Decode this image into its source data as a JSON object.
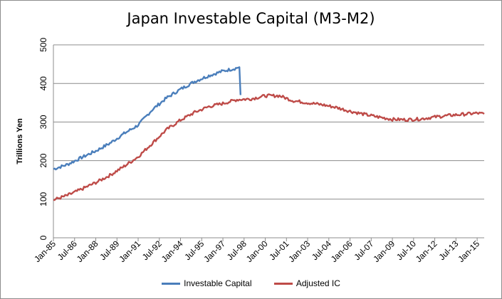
{
  "chart_data": {
    "type": "line",
    "title": "Japan Investable Capital (M3-M2)",
    "ylabel": "Trillions Yen",
    "xlabel": "",
    "ylim": [
      0,
      500
    ],
    "y_ticks": [
      0,
      100,
      200,
      300,
      400,
      500
    ],
    "x_ticks": [
      "Jan-85",
      "Jul-86",
      "Jan-88",
      "Jul-89",
      "Jan-91",
      "Jul-92",
      "Jan-94",
      "Jul-95",
      "Jan-97",
      "Jul-98",
      "Jan-00",
      "Jul-01",
      "Jan-03",
      "Jul-04",
      "Jan-06",
      "Jul-07",
      "Jan-09",
      "Jul-10",
      "Jan-12",
      "Jul-13",
      "Jan-15"
    ],
    "x_range": [
      "Jan-85",
      "Jul-15"
    ],
    "grid": "horizontal",
    "legend_position": "bottom",
    "series": [
      {
        "name": "Investable Capital",
        "color": "#4a7ebb",
        "points": [
          [
            "Jan-85",
            178
          ],
          [
            "Jan-86",
            190
          ],
          [
            "Jan-87",
            208
          ],
          [
            "Jan-88",
            225
          ],
          [
            "Jan-89",
            245
          ],
          [
            "Jan-90",
            270
          ],
          [
            "Jan-91",
            292
          ],
          [
            "Jan-92",
            332
          ],
          [
            "Jan-93",
            362
          ],
          [
            "Jan-94",
            385
          ],
          [
            "Jan-95",
            405
          ],
          [
            "Jan-96",
            420
          ],
          [
            "Jan-97",
            432
          ],
          [
            "Jan-98",
            440
          ],
          [
            "Mar-98",
            442
          ],
          [
            "Apr-98",
            370
          ]
        ]
      },
      {
        "name": "Adjusted IC",
        "color": "#be4b48",
        "points": [
          [
            "Jan-85",
            98
          ],
          [
            "Jan-86",
            110
          ],
          [
            "Jan-87",
            126
          ],
          [
            "Jan-88",
            143
          ],
          [
            "Jan-89",
            162
          ],
          [
            "Jan-90",
            185
          ],
          [
            "Jan-91",
            210
          ],
          [
            "Jan-92",
            245
          ],
          [
            "Jan-93",
            280
          ],
          [
            "Jan-94",
            305
          ],
          [
            "Jan-95",
            325
          ],
          [
            "Jan-96",
            340
          ],
          [
            "Jan-97",
            348
          ],
          [
            "Jan-98",
            358
          ],
          [
            "Jan-99",
            360
          ],
          [
            "Jan-00",
            368
          ],
          [
            "Jan-01",
            368
          ],
          [
            "Jan-02",
            355
          ],
          [
            "Jan-03",
            350
          ],
          [
            "Jan-04",
            345
          ],
          [
            "Jan-05",
            338
          ],
          [
            "Jan-06",
            328
          ],
          [
            "Jan-07",
            320
          ],
          [
            "Jan-08",
            313
          ],
          [
            "Jan-09",
            307
          ],
          [
            "Jan-10",
            306
          ],
          [
            "Jan-11",
            308
          ],
          [
            "Jan-12",
            313
          ],
          [
            "Jan-13",
            317
          ],
          [
            "Jan-14",
            320
          ],
          [
            "Jan-15",
            323
          ],
          [
            "Jul-15",
            321
          ]
        ]
      }
    ]
  }
}
